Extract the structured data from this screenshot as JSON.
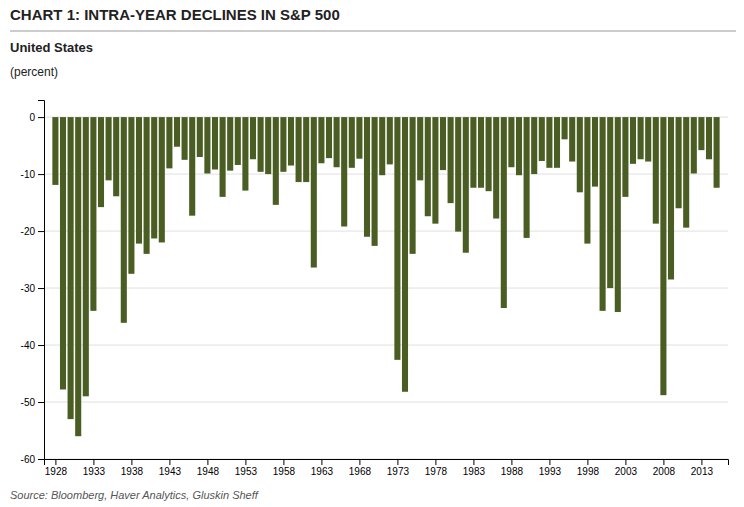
{
  "chart_data": {
    "type": "bar",
    "title": "CHART 1: INTRA-YEAR DECLINES IN S&P 500",
    "subtitle": "United States",
    "ylabel": "(percent)",
    "source": "Source: Bloomberg, Haver Analytics, Gluskin Sheff",
    "color": "#4a5e23",
    "x": [
      1928,
      1929,
      1930,
      1931,
      1932,
      1933,
      1934,
      1935,
      1936,
      1937,
      1938,
      1939,
      1940,
      1941,
      1942,
      1943,
      1944,
      1945,
      1946,
      1947,
      1948,
      1949,
      1950,
      1951,
      1952,
      1953,
      1954,
      1955,
      1956,
      1957,
      1958,
      1959,
      1960,
      1961,
      1962,
      1963,
      1964,
      1965,
      1966,
      1967,
      1968,
      1969,
      1970,
      1971,
      1972,
      1973,
      1974,
      1975,
      1976,
      1977,
      1978,
      1979,
      1980,
      1981,
      1982,
      1983,
      1984,
      1985,
      1986,
      1987,
      1988,
      1989,
      1990,
      1991,
      1992,
      1993,
      1994,
      1995,
      1996,
      1997,
      1998,
      1999,
      2000,
      2001,
      2002,
      2003,
      2004,
      2005,
      2006,
      2007,
      2008,
      2009,
      2010,
      2011,
      2012,
      2013,
      2014,
      2015
    ],
    "values": [
      -11.9,
      -47.8,
      -53.0,
      -56.0,
      -49.0,
      -34.0,
      -15.8,
      -11.1,
      -13.9,
      -36.1,
      -27.5,
      -22.2,
      -24.0,
      -21.3,
      -22.0,
      -9.0,
      -5.2,
      -7.5,
      -17.3,
      -7.0,
      -9.9,
      -9.2,
      -14.0,
      -9.4,
      -8.4,
      -12.9,
      -7.4,
      -9.6,
      -10.0,
      -15.4,
      -9.6,
      -8.5,
      -11.4,
      -11.4,
      -26.4,
      -8.1,
      -7.2,
      -8.8,
      -19.2,
      -8.9,
      -7.3,
      -21.0,
      -22.6,
      -10.2,
      -8.3,
      -42.6,
      -48.2,
      -24.0,
      -11.1,
      -17.4,
      -18.7,
      -9.3,
      -15.1,
      -20.1,
      -23.8,
      -12.4,
      -12.4,
      -13.0,
      -17.8,
      -33.5,
      -8.8,
      -10.2,
      -21.2,
      -10.0,
      -7.7,
      -8.9,
      -8.9,
      -3.9,
      -7.8,
      -13.2,
      -22.2,
      -12.2,
      -34.0,
      -30.0,
      -34.2,
      -14.0,
      -8.2,
      -7.4,
      -7.8,
      -18.7,
      -48.8,
      -28.5,
      -16.0,
      -19.4,
      -9.9,
      -5.8,
      -7.4,
      -12.4
    ],
    "xlim": [
      1926.5,
      2016.5
    ],
    "xticks": [
      1928,
      1933,
      1938,
      1943,
      1948,
      1953,
      1958,
      1963,
      1968,
      1973,
      1978,
      1983,
      1988,
      1993,
      1998,
      2003,
      2008,
      2013
    ],
    "ylim": [
      -60,
      3
    ],
    "yticks": [
      0,
      -10,
      -20,
      -30,
      -40,
      -50,
      -60
    ],
    "grid": true
  }
}
